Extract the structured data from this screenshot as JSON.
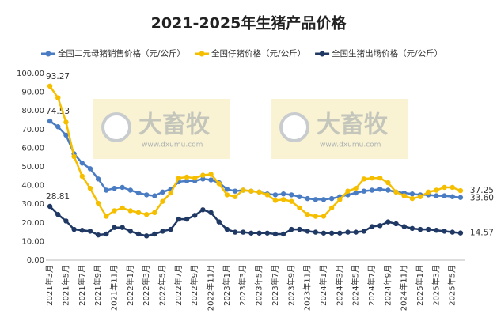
{
  "chart_data": {
    "type": "line",
    "title": "2021-2025年生猪产品价格",
    "watermark": {
      "logo": "大畜牧",
      "url": "www.dxumu.com"
    },
    "categories": [
      "2021年3月",
      null,
      "2021年5月",
      null,
      "2021年7月",
      null,
      "2021年9月",
      null,
      "2021年11月",
      null,
      "2022年1月",
      null,
      "2022年3月",
      null,
      "2022年5月",
      null,
      "2022年7月",
      null,
      "2022年9月",
      null,
      "2022年11月",
      null,
      "2023年1月",
      null,
      "2023年3月",
      null,
      "2023年5月",
      null,
      "2023年7月",
      null,
      "2023年9月",
      null,
      "2023年11月",
      null,
      "2024年1月",
      null,
      "2024年3月",
      null,
      "2024年5月",
      null,
      "2024年7月",
      null,
      "2024年9月",
      null,
      "2024年11月",
      null,
      "2025年1月",
      null,
      "2025年3月",
      null,
      "2025年5月",
      null
    ],
    "series": [
      {
        "name": "全国二元母猪销售价格（元/公斤）",
        "color": "#4a7cc4",
        "values": [
          74.53,
          71.5,
          67,
          57,
          52,
          49,
          43.5,
          37.5,
          38.5,
          39,
          37.5,
          36,
          35,
          34.5,
          36.5,
          38,
          42,
          42.5,
          42.5,
          43.5,
          43,
          41.5,
          38,
          37,
          37.5,
          37,
          36.5,
          35.5,
          35,
          35.5,
          35,
          34,
          33,
          32.5,
          32.5,
          33,
          34,
          35,
          36,
          37,
          37.5,
          38,
          37.5,
          36.5,
          36,
          35.5,
          35,
          35,
          34.5,
          34.5,
          34,
          33.6
        ],
        "value_labels": [
          "74.53",
          null,
          null,
          null,
          null,
          null,
          null,
          null,
          null,
          null,
          null,
          null,
          null,
          null,
          null,
          null,
          null,
          null,
          null,
          null,
          null,
          null,
          null,
          null,
          null,
          null,
          null,
          null,
          null,
          null,
          null,
          null,
          null,
          null,
          null,
          null,
          null,
          null,
          null,
          null,
          null,
          null,
          null,
          null,
          null,
          null,
          null,
          null,
          null,
          null,
          null,
          "33.60"
        ]
      },
      {
        "name": "全国仔猪价格（元/公斤）",
        "color": "#f5bf00",
        "values": [
          93.27,
          87,
          74,
          55.5,
          45,
          38.5,
          30.5,
          23.5,
          26.5,
          28,
          26.5,
          25.5,
          24.5,
          25.5,
          31.5,
          36,
          44,
          44.5,
          44,
          45.5,
          46,
          41,
          35,
          34,
          37.5,
          37,
          36.5,
          35,
          32,
          32.5,
          31.5,
          28,
          24.5,
          23.5,
          23.5,
          28,
          32.5,
          37,
          38.5,
          43.5,
          44,
          44,
          41.5,
          36.5,
          34.5,
          33,
          34,
          36.5,
          37.5,
          39,
          39,
          37.25
        ],
        "value_labels": [
          "93.27",
          null,
          null,
          null,
          null,
          null,
          null,
          null,
          null,
          null,
          null,
          null,
          null,
          null,
          null,
          null,
          null,
          null,
          null,
          null,
          null,
          null,
          null,
          null,
          null,
          null,
          null,
          null,
          null,
          null,
          null,
          null,
          null,
          null,
          null,
          null,
          null,
          null,
          null,
          null,
          null,
          null,
          null,
          null,
          null,
          null,
          null,
          null,
          null,
          null,
          null,
          "37.25"
        ]
      },
      {
        "name": "全国生猪出场价格（元/公斤）",
        "color": "#1f3864",
        "values": [
          28.81,
          24.5,
          21,
          16.5,
          16,
          15.5,
          13.5,
          14,
          17.5,
          17.5,
          15.5,
          14,
          13,
          14,
          15.5,
          16.5,
          22,
          22,
          24,
          27,
          25.5,
          20.5,
          16.5,
          15,
          15,
          14.5,
          14.5,
          14.5,
          14,
          14,
          16.5,
          16.5,
          15.5,
          15,
          14.5,
          14.5,
          14.5,
          15,
          15,
          15.5,
          18,
          18.5,
          20.5,
          19.5,
          18,
          17,
          16.5,
          16.5,
          16,
          15.5,
          15,
          14.57
        ],
        "value_labels": [
          "28.81",
          null,
          null,
          null,
          null,
          null,
          null,
          null,
          null,
          null,
          null,
          null,
          null,
          null,
          null,
          null,
          null,
          null,
          null,
          null,
          null,
          null,
          null,
          null,
          null,
          null,
          null,
          null,
          null,
          null,
          null,
          null,
          null,
          null,
          null,
          null,
          null,
          null,
          null,
          null,
          null,
          null,
          null,
          null,
          null,
          null,
          null,
          null,
          null,
          null,
          null,
          "14.57"
        ]
      }
    ],
    "ylim": [
      0,
      100
    ],
    "yticks": [
      {
        "value": 0,
        "label": "0.00"
      },
      {
        "value": 10,
        "label": "10.00"
      },
      {
        "value": 20,
        "label": "20.00"
      },
      {
        "value": 30,
        "label": "30.00"
      },
      {
        "value": 40,
        "label": "40.00"
      },
      {
        "value": 50,
        "label": "50.00"
      },
      {
        "value": 60,
        "label": "60.00"
      },
      {
        "value": 70,
        "label": "70.00"
      },
      {
        "value": 80,
        "label": "80.00"
      },
      {
        "value": 90,
        "label": "90.00"
      },
      {
        "value": 100,
        "label": "100.00"
      }
    ],
    "legend": "top"
  }
}
